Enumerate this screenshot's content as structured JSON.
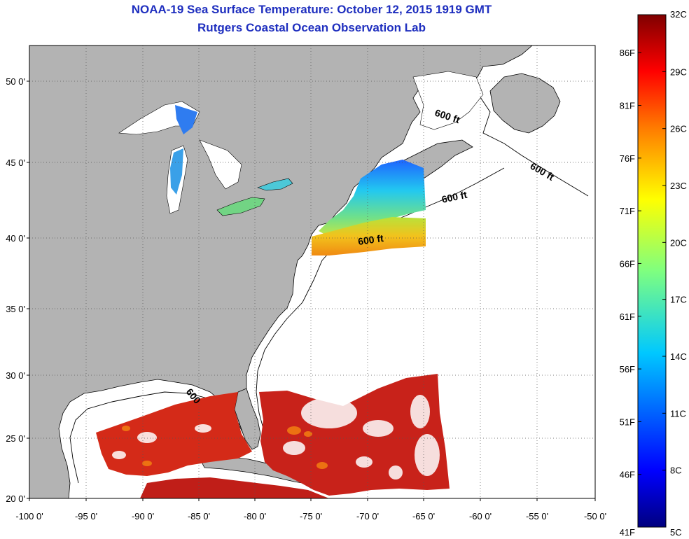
{
  "header": {
    "title": "NOAA-19 Sea Surface Temperature:  October 12, 2015 1919 GMT",
    "subtitle": "Rutgers Coastal Ocean Observation Lab"
  },
  "map": {
    "lat_labels": [
      "50 0'",
      "45 0'",
      "40 0'",
      "35 0'",
      "30 0'",
      "25 0'",
      "20 0'"
    ],
    "lon_labels": [
      "-100 0'",
      "-95 0'",
      "-90 0'",
      "-85 0'",
      "-80 0'",
      "-75 0'",
      "-70 0'",
      "-65 0'",
      "-60 0'",
      "-55 0'",
      "-50 0'"
    ],
    "contour_label": "600 ft",
    "contour_label_short": "600",
    "colors": {
      "land": "#b3b3b3",
      "cloud": "#ffffff",
      "grid": "#555555"
    }
  },
  "colorbar": {
    "fahrenheit_labels": [
      "86F",
      "81F",
      "76F",
      "71F",
      "66F",
      "61F",
      "56F",
      "51F",
      "46F",
      "41F"
    ],
    "celsius_labels": [
      "32C",
      "29C",
      "26C",
      "23C",
      "20C",
      "17C",
      "14C",
      "11C",
      "8C",
      "5C"
    ],
    "range_celsius": [
      5,
      32
    ],
    "range_fahrenheit": [
      41,
      89.6
    ]
  }
}
